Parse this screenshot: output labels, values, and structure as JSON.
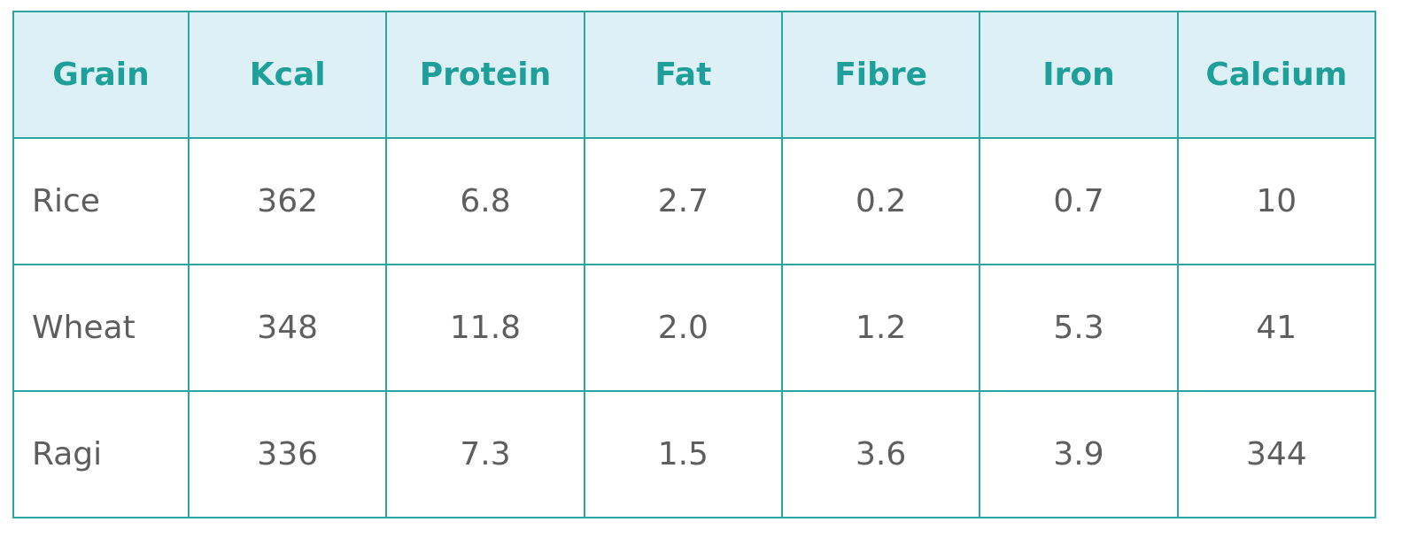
{
  "table": {
    "header": [
      "Grain",
      "Kcal",
      "Protein",
      "Fat",
      "Fibre",
      "Iron",
      "Calcium"
    ],
    "rows": [
      [
        "Rice",
        "362",
        "6.8",
        "2.7",
        "0.2",
        "0.7",
        "10"
      ],
      [
        "Wheat",
        "348",
        "11.8",
        "2.0",
        "1.2",
        "5.3",
        "41"
      ],
      [
        "Ragi",
        "336",
        "7.3",
        "1.5",
        "3.6",
        "3.9",
        "344"
      ]
    ]
  }
}
